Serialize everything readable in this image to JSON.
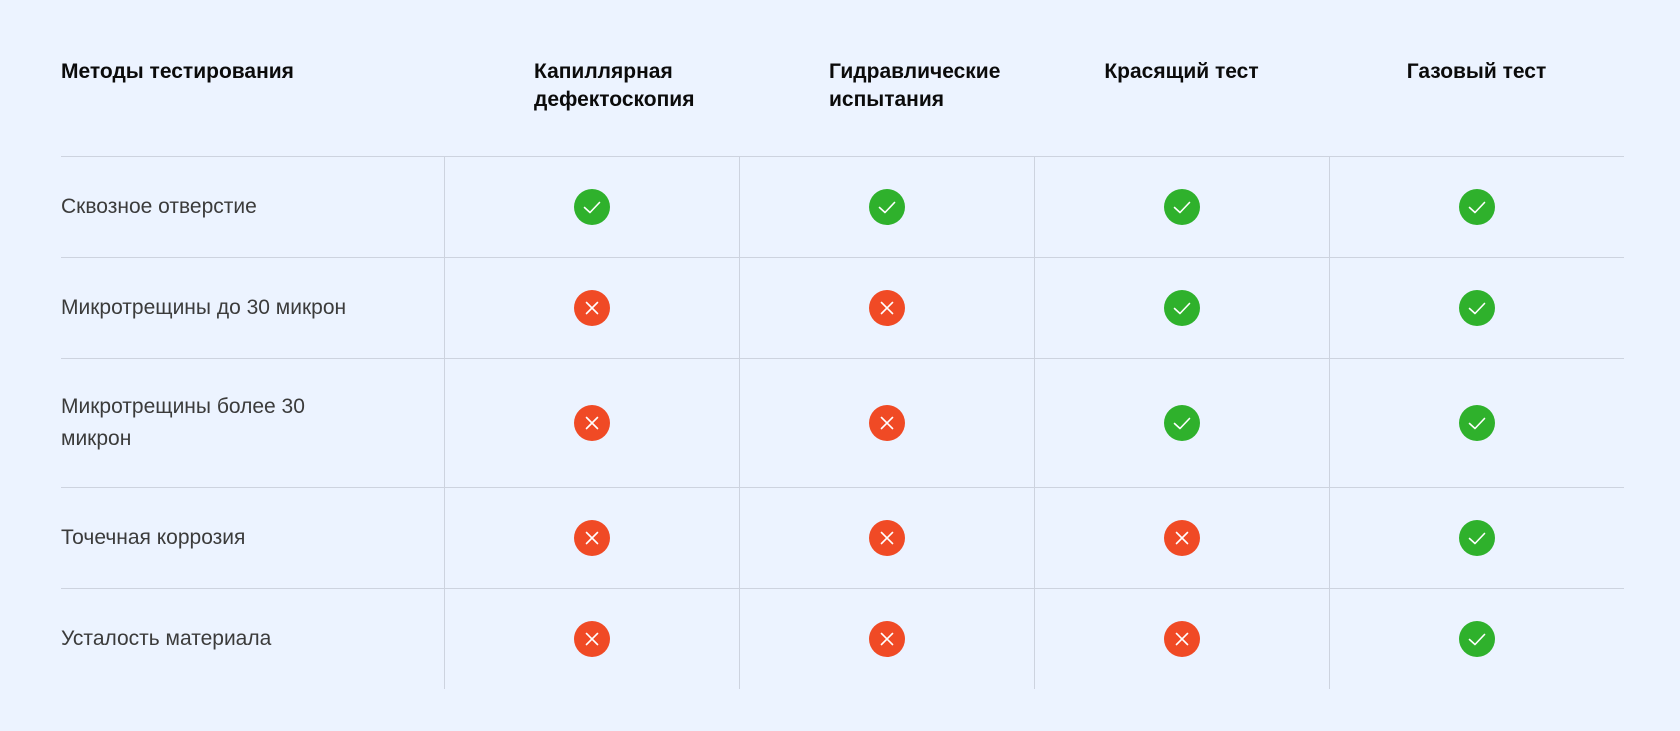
{
  "table": {
    "header": {
      "label": "Методы тестирования",
      "methods": [
        "Капиллярная дефектоскопия",
        "Гидравлические испытания",
        "Красящий тест",
        "Газовый тест"
      ]
    },
    "rows": [
      {
        "label": "Сквозное отверстие",
        "marks": [
          "yes",
          "yes",
          "yes",
          "yes"
        ]
      },
      {
        "label": "Микротрещины до 30 микрон",
        "marks": [
          "no",
          "no",
          "yes",
          "yes"
        ]
      },
      {
        "label": "Микротрещины более 30 микрон",
        "marks": [
          "no",
          "no",
          "yes",
          "yes"
        ]
      },
      {
        "label": "Точечная коррозия",
        "marks": [
          "no",
          "no",
          "no",
          "yes"
        ]
      },
      {
        "label": "Усталость материала",
        "marks": [
          "no",
          "no",
          "no",
          "yes"
        ]
      }
    ]
  },
  "icons": {
    "yes": "check-icon",
    "no": "cross-icon"
  },
  "colors": {
    "background": "#ecf3ff",
    "yes": "#2fb12c",
    "no": "#f04a25",
    "grid": "#cdd3df"
  }
}
